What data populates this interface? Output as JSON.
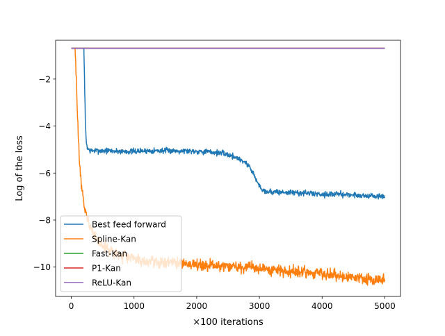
{
  "chart_data": {
    "type": "line",
    "title": "",
    "xlabel": "×100 iterations",
    "ylabel": "Log of the loss",
    "xlim": [
      -250,
      5250
    ],
    "ylim": [
      -11.25,
      -0.35
    ],
    "x_ticks": [
      0,
      1000,
      2000,
      3000,
      4000,
      5000
    ],
    "x_tick_labels": [
      "0",
      "1000",
      "2000",
      "3000",
      "4000",
      "5000"
    ],
    "y_ticks": [
      -2,
      -4,
      -6,
      -8,
      -10
    ],
    "y_tick_labels": [
      "−2",
      "−4",
      "−6",
      "−8",
      "−10"
    ],
    "grid": false,
    "legend_position": "bottom-left",
    "series": [
      {
        "name": "Best feed forward",
        "color": "#1f77b4",
        "noise": 0.06,
        "x": [
          0,
          200,
          215,
          225,
          240,
          260,
          300,
          400,
          600,
          800,
          1000,
          1200,
          1500,
          1800,
          2100,
          2400,
          2600,
          2750,
          2850,
          2900,
          2950,
          3000,
          3050,
          3100,
          3200,
          3400,
          3700,
          4000,
          4300,
          4600,
          4900,
          5000
        ],
        "y": [
          -0.7,
          -0.7,
          -2.5,
          -4.0,
          -4.7,
          -4.95,
          -5.05,
          -5.05,
          -5.05,
          -5.08,
          -5.08,
          -5.05,
          -5.05,
          -5.05,
          -5.08,
          -5.15,
          -5.3,
          -5.5,
          -5.75,
          -6.0,
          -6.3,
          -6.55,
          -6.7,
          -6.78,
          -6.8,
          -6.82,
          -6.85,
          -6.9,
          -6.9,
          -6.95,
          -7.0,
          -7.0
        ]
      },
      {
        "name": "Spline-Kan",
        "color": "#ff7f0e",
        "noise": 0.12,
        "x": [
          0,
          60,
          80,
          100,
          120,
          150,
          200,
          260,
          320,
          400,
          500,
          600,
          800,
          1000,
          1200,
          1500,
          1800,
          2100,
          2400,
          2700,
          3000,
          3300,
          3600,
          3900,
          4200,
          4500,
          4800,
          5000
        ],
        "y": [
          -0.7,
          -0.7,
          -2.0,
          -3.8,
          -5.0,
          -6.2,
          -7.3,
          -8.0,
          -8.4,
          -8.8,
          -9.1,
          -9.3,
          -9.55,
          -9.65,
          -9.75,
          -9.8,
          -9.85,
          -9.9,
          -9.95,
          -10.0,
          -10.05,
          -10.15,
          -10.2,
          -10.25,
          -10.35,
          -10.45,
          -10.55,
          -10.6
        ]
      },
      {
        "name": "Fast-Kan",
        "color": "#2ca02c",
        "noise": 0,
        "x": [
          0,
          5000
        ],
        "y": [
          -0.69,
          -0.69
        ]
      },
      {
        "name": "P1-Kan",
        "color": "#d62728",
        "noise": 0,
        "x": [
          0,
          5000
        ],
        "y": [
          -0.69,
          -0.69
        ]
      },
      {
        "name": "ReLU-Kan",
        "color": "#9467bd",
        "noise": 0,
        "x": [
          0,
          5000
        ],
        "y": [
          -0.69,
          -0.69
        ]
      }
    ]
  }
}
